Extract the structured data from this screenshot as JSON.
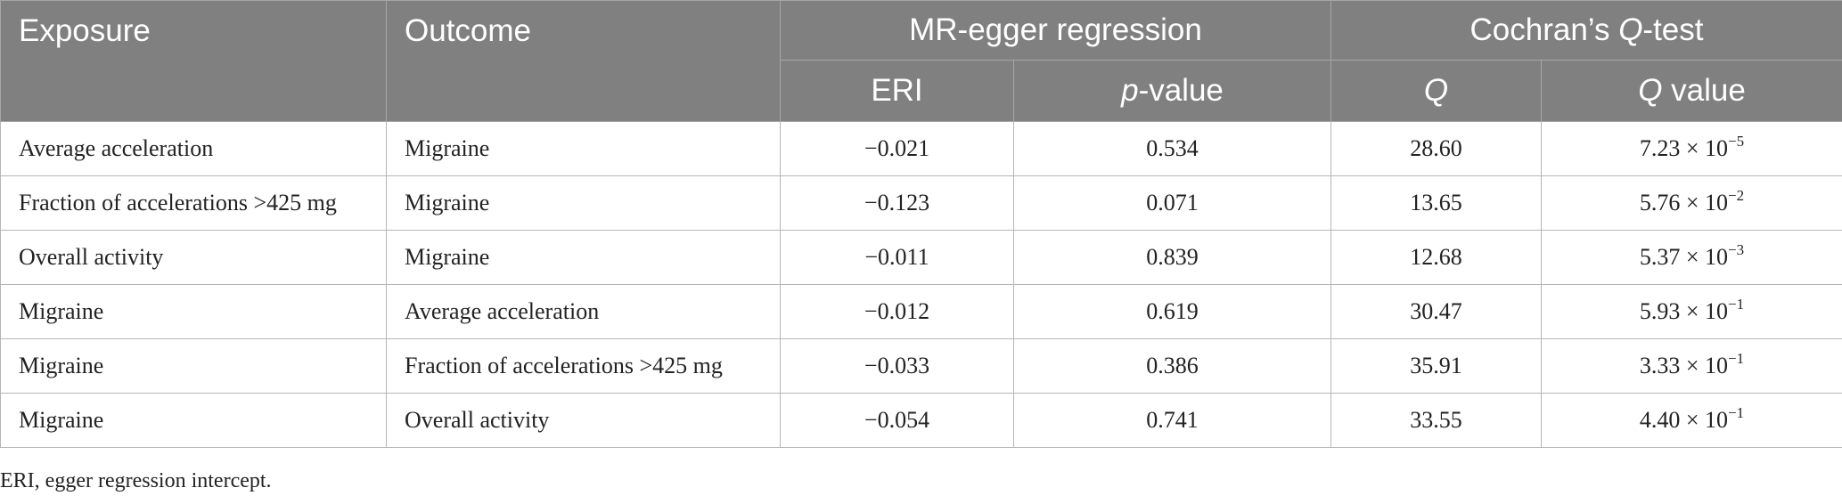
{
  "table": {
    "headers": {
      "exposure": "Exposure",
      "outcome": "Outcome",
      "mr_egger": "MR-egger regression",
      "cochran_prefix": "Cochran’s ",
      "cochran_q": "Q",
      "cochran_suffix": "-test",
      "eri": "ERI",
      "p_italic": "p",
      "p_rest": "-value",
      "q": "Q",
      "q_value_italic": "Q",
      "q_value_rest": " value"
    },
    "rows": [
      {
        "exposure": "Average acceleration",
        "outcome": "Migraine",
        "eri": "−0.021",
        "p_value": "0.534",
        "q": "28.60",
        "q_value_base": "7.23 × 10",
        "q_value_exp": "−5"
      },
      {
        "exposure": "Fraction of accelerations >425 mg",
        "outcome": "Migraine",
        "eri": "−0.123",
        "p_value": "0.071",
        "q": "13.65",
        "q_value_base": "5.76 × 10",
        "q_value_exp": "−2"
      },
      {
        "exposure": "Overall activity",
        "outcome": "Migraine",
        "eri": "−0.011",
        "p_value": "0.839",
        "q": "12.68",
        "q_value_base": "5.37 × 10",
        "q_value_exp": "−3"
      },
      {
        "exposure": "Migraine",
        "outcome": "Average acceleration",
        "eri": "−0.012",
        "p_value": "0.619",
        "q": "30.47",
        "q_value_base": "5.93 × 10",
        "q_value_exp": "−1"
      },
      {
        "exposure": "Migraine",
        "outcome": "Fraction of accelerations >425 mg",
        "eri": "−0.033",
        "p_value": "0.386",
        "q": "35.91",
        "q_value_base": "3.33 × 10",
        "q_value_exp": "−1"
      },
      {
        "exposure": "Migraine",
        "outcome": "Overall activity",
        "eri": "−0.054",
        "p_value": "0.741",
        "q": "33.55",
        "q_value_base": "4.40 × 10",
        "q_value_exp": "−1"
      }
    ]
  },
  "footnote": "ERI, egger regression intercept.",
  "colors": {
    "header_bg": "#808080",
    "header_text": "#ffffff",
    "grid": "#b5b5b5"
  }
}
